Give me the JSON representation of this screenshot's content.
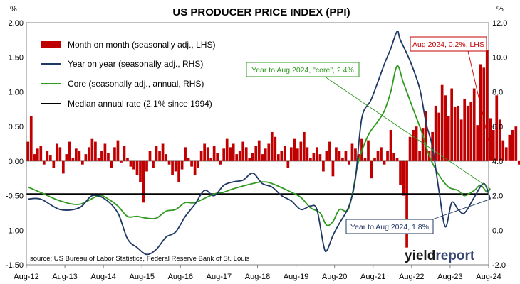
{
  "chart_data": {
    "type": "bar+line",
    "title": "US PRODUCER PRICE INDEX (PPI)",
    "left_axis": {
      "unit": "%",
      "range": [
        -1.5,
        2.0
      ],
      "ticks": [
        "2.00",
        "1.50",
        "1.00",
        "0.50",
        "0.00",
        "-0.50",
        "-1.00",
        "-1.50"
      ]
    },
    "right_axis": {
      "unit": "%",
      "range": [
        -2.0,
        12.0
      ],
      "ticks": [
        "12.0",
        "10.0",
        "8.0",
        "6.0",
        "4.0",
        "2.0",
        "0.0",
        "-2.0"
      ]
    },
    "x_ticks": [
      "Aug-12",
      "Aug-13",
      "Aug-14",
      "Aug-15",
      "Aug-16",
      "Aug-17",
      "Aug-18",
      "Aug-19",
      "Aug-20",
      "Aug-21",
      "Aug-22",
      "Aug-23",
      "Aug-24"
    ],
    "x_start": "2012-08",
    "legend": [
      {
        "label": "Month on month (seasonally adj., LHS)",
        "color": "#c00000",
        "kind": "bar"
      },
      {
        "label": "Year on year (seasonally adj., RHS)",
        "color": "#1f3864",
        "kind": "line"
      },
      {
        "label": "Core (seasonally adj., annual, RHS)",
        "color": "#2f9a1f",
        "kind": "line"
      },
      {
        "label": "Median annual rate (2.1% since 1994)",
        "color": "#000000",
        "kind": "line"
      }
    ],
    "series": [
      {
        "name": "Month on month (seasonally adj., LHS)",
        "axis": "left",
        "values": [
          0.28,
          0.65,
          0.1,
          0.18,
          0.22,
          -0.05,
          0.15,
          0.08,
          -0.1,
          0.25,
          0.2,
          -0.18,
          0.1,
          0.28,
          0.05,
          0.18,
          0.15,
          -0.05,
          0.1,
          0.2,
          0.32,
          0.28,
          0.05,
          0.15,
          0.25,
          0.12,
          -0.1,
          0.2,
          0.3,
          -0.02,
          0.22,
          0.05,
          -0.08,
          -0.12,
          -0.2,
          -0.3,
          -0.6,
          -0.15,
          0.15,
          -0.1,
          0.22,
          0.15,
          0.25,
          0.1,
          -0.05,
          -0.2,
          -0.15,
          -0.3,
          -0.12,
          0.2,
          0.05,
          -0.08,
          -0.2,
          -0.1,
          0.15,
          0.25,
          0.2,
          0.05,
          0.22,
          0.12,
          -0.05,
          0.18,
          0.32,
          0.2,
          0.25,
          0.1,
          0.15,
          0.28,
          0.2,
          0.05,
          0.12,
          0.22,
          0.3,
          0.1,
          0.18,
          0.25,
          0.42,
          0.35,
          0.1,
          0.15,
          0.22,
          -0.1,
          0.2,
          0.32,
          0.18,
          0.28,
          0.42,
          0.2,
          0.05,
          0.12,
          0.2,
          0.1,
          -0.15,
          0.15,
          0.28,
          -0.22,
          0.2,
          0.15,
          0.05,
          0.15,
          -0.05,
          0.25,
          0.18,
          0.1,
          0.32,
          0.05,
          0.3,
          -0.25,
          0.05,
          0.15,
          0.2,
          -0.05,
          0.15,
          0.45,
          0.12,
          0.05,
          -0.35,
          -0.5,
          -1.25,
          0.35,
          0.45,
          0.5,
          0.15,
          0.48,
          0.72,
          0.15,
          0.42,
          0.8,
          0.7,
          1.1,
          0.95,
          0.65,
          1.05,
          0.78,
          0.8,
          0.6,
          0.9,
          0.8,
          0.85,
          1.05,
          0.52,
          1.4,
          1.35,
          1.6,
          0.62,
          0.45,
          0.95,
          0.6,
          0.3,
          0.2,
          0.38,
          0.45,
          0.5,
          -0.05,
          0.25,
          -0.3,
          0.32,
          0.32,
          0.2,
          0.4,
          -0.3,
          -0.2,
          0.15,
          -0.05,
          0.02,
          0.55,
          0.6,
          0.12,
          0.35,
          0.25,
          0.2,
          0.1,
          0.42,
          0.55,
          0.25,
          -0.25,
          -0.1,
          0.15,
          0.3,
          0.58,
          0.5,
          0.12,
          -0.15,
          0.18,
          0.02,
          0.22
        ],
        "color": "#c00000"
      },
      {
        "name": "Year on year (seasonally adj., RHS)",
        "axis": "right",
        "points": [
          [
            "2012-08",
            1.8
          ],
          [
            "2012-12",
            1.8
          ],
          [
            "2013-06",
            1.2
          ],
          [
            "2013-12",
            1.3
          ],
          [
            "2014-04",
            2.0
          ],
          [
            "2014-08",
            1.8
          ],
          [
            "2014-12",
            1.0
          ],
          [
            "2015-03",
            -0.5
          ],
          [
            "2015-06",
            -1.0
          ],
          [
            "2015-09",
            -1.4
          ],
          [
            "2015-12",
            -1.1
          ],
          [
            "2016-03",
            -0.4
          ],
          [
            "2016-06",
            -0.1
          ],
          [
            "2016-09",
            0.8
          ],
          [
            "2016-12",
            1.5
          ],
          [
            "2017-03",
            2.3
          ],
          [
            "2017-06",
            2.0
          ],
          [
            "2017-09",
            2.6
          ],
          [
            "2017-12",
            2.8
          ],
          [
            "2018-03",
            2.9
          ],
          [
            "2018-06",
            3.3
          ],
          [
            "2018-09",
            2.7
          ],
          [
            "2018-12",
            2.5
          ],
          [
            "2019-03",
            2.0
          ],
          [
            "2019-06",
            1.7
          ],
          [
            "2019-09",
            1.2
          ],
          [
            "2019-12",
            1.4
          ],
          [
            "2020-02",
            1.2
          ],
          [
            "2020-04",
            -0.8
          ],
          [
            "2020-05",
            -1.2
          ],
          [
            "2020-07",
            -0.3
          ],
          [
            "2020-09",
            0.4
          ],
          [
            "2020-12",
            1.4
          ],
          [
            "2021-02",
            3.0
          ],
          [
            "2021-04",
            6.5
          ],
          [
            "2021-07",
            7.6
          ],
          [
            "2021-11",
            9.6
          ],
          [
            "2022-01",
            10.5
          ],
          [
            "2022-03",
            11.5
          ],
          [
            "2022-04",
            11.0
          ],
          [
            "2022-07",
            9.8
          ],
          [
            "2022-10",
            8.2
          ],
          [
            "2022-12",
            6.2
          ],
          [
            "2023-02",
            4.8
          ],
          [
            "2023-04",
            2.3
          ],
          [
            "2023-06",
            0.2
          ],
          [
            "2023-08",
            1.6
          ],
          [
            "2023-10",
            1.2
          ],
          [
            "2023-12",
            1.0
          ],
          [
            "2024-03",
            1.9
          ],
          [
            "2024-06",
            2.7
          ],
          [
            "2024-08",
            1.8
          ]
        ],
        "color": "#1f3864"
      },
      {
        "name": "Core (seasonally adj., annual, RHS)",
        "axis": "right",
        "points": [
          [
            "2012-08",
            2.5
          ],
          [
            "2013-01",
            2.1
          ],
          [
            "2013-06",
            1.7
          ],
          [
            "2013-12",
            1.5
          ],
          [
            "2014-06",
            2.0
          ],
          [
            "2014-09",
            1.8
          ],
          [
            "2014-12",
            1.4
          ],
          [
            "2015-03",
            0.8
          ],
          [
            "2015-06",
            0.8
          ],
          [
            "2015-09",
            0.7
          ],
          [
            "2015-12",
            0.7
          ],
          [
            "2016-03",
            1.1
          ],
          [
            "2016-06",
            1.2
          ],
          [
            "2016-09",
            1.6
          ],
          [
            "2016-12",
            1.6
          ],
          [
            "2017-06",
            2.1
          ],
          [
            "2017-09",
            2.2
          ],
          [
            "2017-12",
            2.4
          ],
          [
            "2018-06",
            2.7
          ],
          [
            "2018-09",
            2.8
          ],
          [
            "2018-12",
            2.7
          ],
          [
            "2019-06",
            2.2
          ],
          [
            "2019-09",
            1.9
          ],
          [
            "2019-12",
            1.3
          ],
          [
            "2020-03",
            1.0
          ],
          [
            "2020-05",
            0.3
          ],
          [
            "2020-07",
            0.5
          ],
          [
            "2020-09",
            1.2
          ],
          [
            "2020-12",
            1.3
          ],
          [
            "2021-03",
            4.0
          ],
          [
            "2021-06",
            5.5
          ],
          [
            "2021-09",
            6.3
          ],
          [
            "2021-11",
            6.9
          ],
          [
            "2022-01",
            8.0
          ],
          [
            "2022-03",
            9.5
          ],
          [
            "2022-05",
            8.5
          ],
          [
            "2022-08",
            7.0
          ],
          [
            "2022-11",
            5.5
          ],
          [
            "2023-01",
            4.3
          ],
          [
            "2023-04",
            3.2
          ],
          [
            "2023-07",
            2.5
          ],
          [
            "2023-10",
            2.3
          ],
          [
            "2023-12",
            2.0
          ],
          [
            "2024-03",
            2.3
          ],
          [
            "2024-05",
            2.6
          ],
          [
            "2024-07",
            2.2
          ],
          [
            "2024-08",
            2.4
          ]
        ],
        "color": "#2f9a1f"
      },
      {
        "name": "Median annual rate (2.1% since 1994)",
        "axis": "right",
        "value": 2.1,
        "color": "#000000"
      }
    ],
    "annotations": [
      {
        "text": "Aug 2024, 0.2%, LHS",
        "color": "#c00000",
        "target": [
          "2024-08",
          0.2
        ],
        "axis": "left"
      },
      {
        "text": "Year to Aug 2024, \"core\", 2.4%",
        "color": "#2f9a1f",
        "target": [
          "2024-08",
          2.4
        ],
        "axis": "right"
      },
      {
        "text": "Year to Aug 2024, 1.8%",
        "color": "#1f3864",
        "target": [
          "2024-08",
          1.8
        ],
        "axis": "right"
      }
    ],
    "source": "source: US Bureau of Labor Statistics, Federal Reserve Bank of St. Louis",
    "brand": {
      "part1": "yield",
      "part2": "report",
      "color1": "#1a1a1a",
      "color2": "#3a4a78"
    }
  }
}
